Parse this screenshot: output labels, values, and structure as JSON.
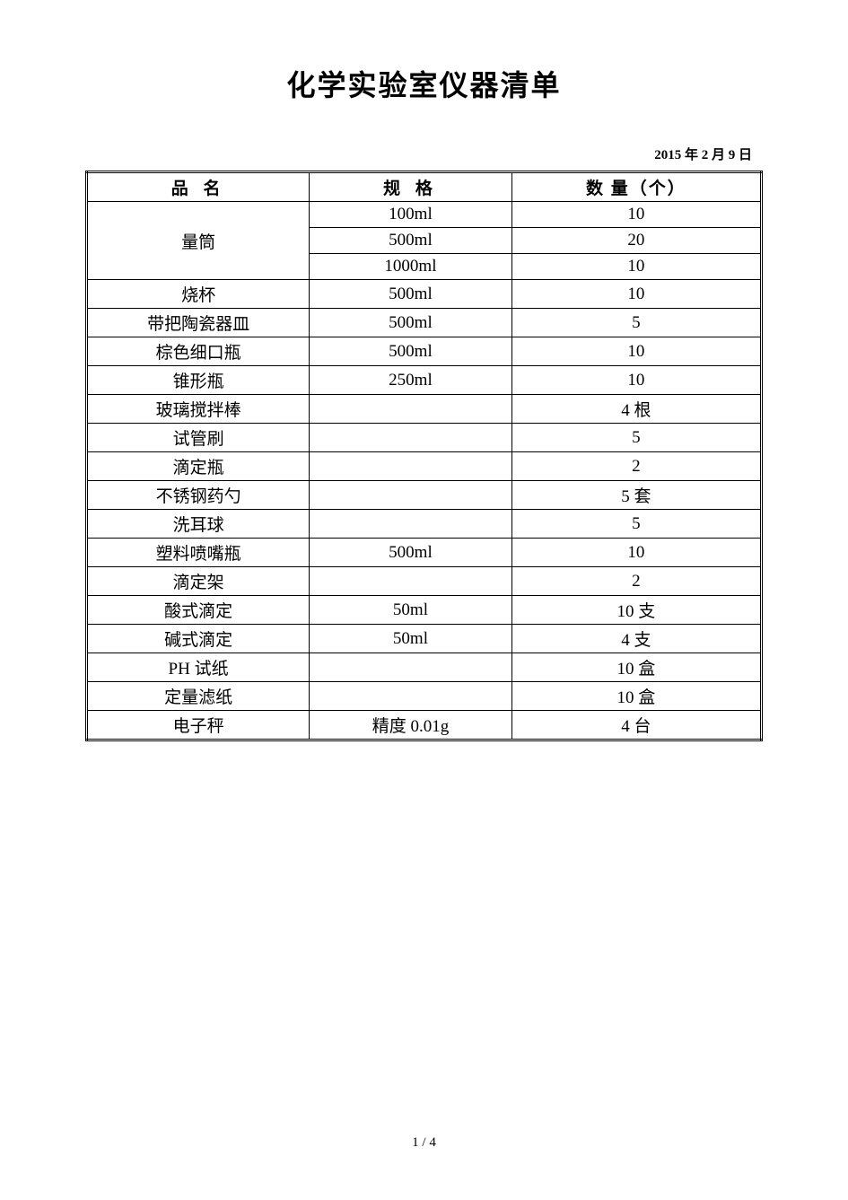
{
  "document": {
    "title": "化学实验室仪器清单",
    "date": "2015 年 2 月 9 日",
    "page_number": "1 / 4"
  },
  "table": {
    "type": "table",
    "headers": {
      "name": "品 名",
      "spec": "规 格",
      "quantity": "数 量（个）"
    },
    "column_widths": [
      "33%",
      "30%",
      "37%"
    ],
    "rows": [
      {
        "name": "量筒",
        "spec": "100ml",
        "qty": "10",
        "rowspan_name": 3
      },
      {
        "name": "",
        "spec": "500ml",
        "qty": "20"
      },
      {
        "name": "",
        "spec": "1000ml",
        "qty": "10"
      },
      {
        "name": "烧杯",
        "spec": "500ml",
        "qty": "10"
      },
      {
        "name": "带把陶瓷器皿",
        "spec": "500ml",
        "qty": "5"
      },
      {
        "name": "棕色细口瓶",
        "spec": "500ml",
        "qty": "10"
      },
      {
        "name": "锥形瓶",
        "spec": "250ml",
        "qty": "10"
      },
      {
        "name": "玻璃搅拌棒",
        "spec": "",
        "qty": "4 根"
      },
      {
        "name": "试管刷",
        "spec": "",
        "qty": "5"
      },
      {
        "name": "滴定瓶",
        "spec": "",
        "qty": "2"
      },
      {
        "name": "不锈钢药勺",
        "spec": "",
        "qty": "5 套"
      },
      {
        "name": "洗耳球",
        "spec": "",
        "qty": "5"
      },
      {
        "name": "塑料喷嘴瓶",
        "spec": "500ml",
        "qty": "10"
      },
      {
        "name": "滴定架",
        "spec": "",
        "qty": "2"
      },
      {
        "name": "酸式滴定",
        "spec": "50ml",
        "qty": "10 支"
      },
      {
        "name": "碱式滴定",
        "spec": "50ml",
        "qty": "4 支"
      },
      {
        "name": "PH 试纸",
        "spec": "",
        "qty": "10 盒"
      },
      {
        "name": "定量滤纸",
        "spec": "",
        "qty": "10 盒"
      },
      {
        "name": "电子秤",
        "spec": "精度 0.01g",
        "qty": "4 台"
      }
    ],
    "border_color": "#000000",
    "background_color": "#ffffff",
    "header_fontsize": 19,
    "cell_fontsize": 19,
    "font_family": "SimSun"
  }
}
